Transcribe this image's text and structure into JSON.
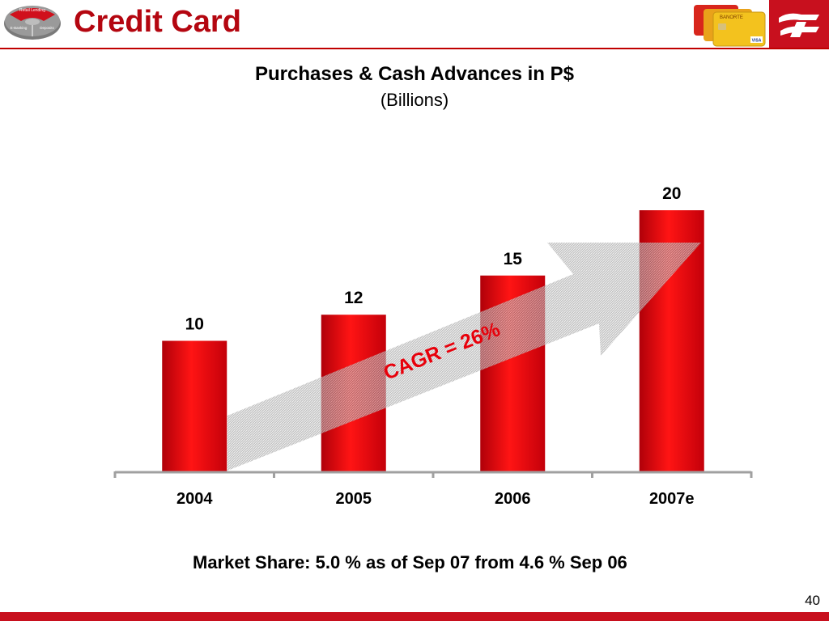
{
  "header": {
    "title": "Credit Card",
    "nav_wheel": {
      "top": "Retail Lending",
      "left": "E-Banking",
      "right": "Deposits"
    },
    "brand_icon": "banorte-logo-icon",
    "cards_icon": "credit-cards-icon",
    "card_label": "BANORTE",
    "card_network": "VISA"
  },
  "colors": {
    "brand_red": "#c8101e",
    "title_red": "#b40610",
    "bar_red": "#e8000b",
    "arrow_gray": "#8c8c8c",
    "axis": "#999999"
  },
  "chart_data": {
    "type": "bar",
    "title": "Purchases & Cash Advances in P$",
    "subtitle": "(Billions)",
    "categories": [
      "2004",
      "2005",
      "2006",
      "2007e"
    ],
    "values": [
      10,
      12,
      15,
      20
    ],
    "data_labels": [
      "10",
      "12",
      "15",
      "20"
    ],
    "ylim": [
      0,
      20
    ],
    "grid": false,
    "annotation": "CAGR = 26%"
  },
  "footer": {
    "market_share": "Market Share: 5.0 % as of Sep 07 from 4.6 % Sep 06",
    "page_number": "40"
  }
}
